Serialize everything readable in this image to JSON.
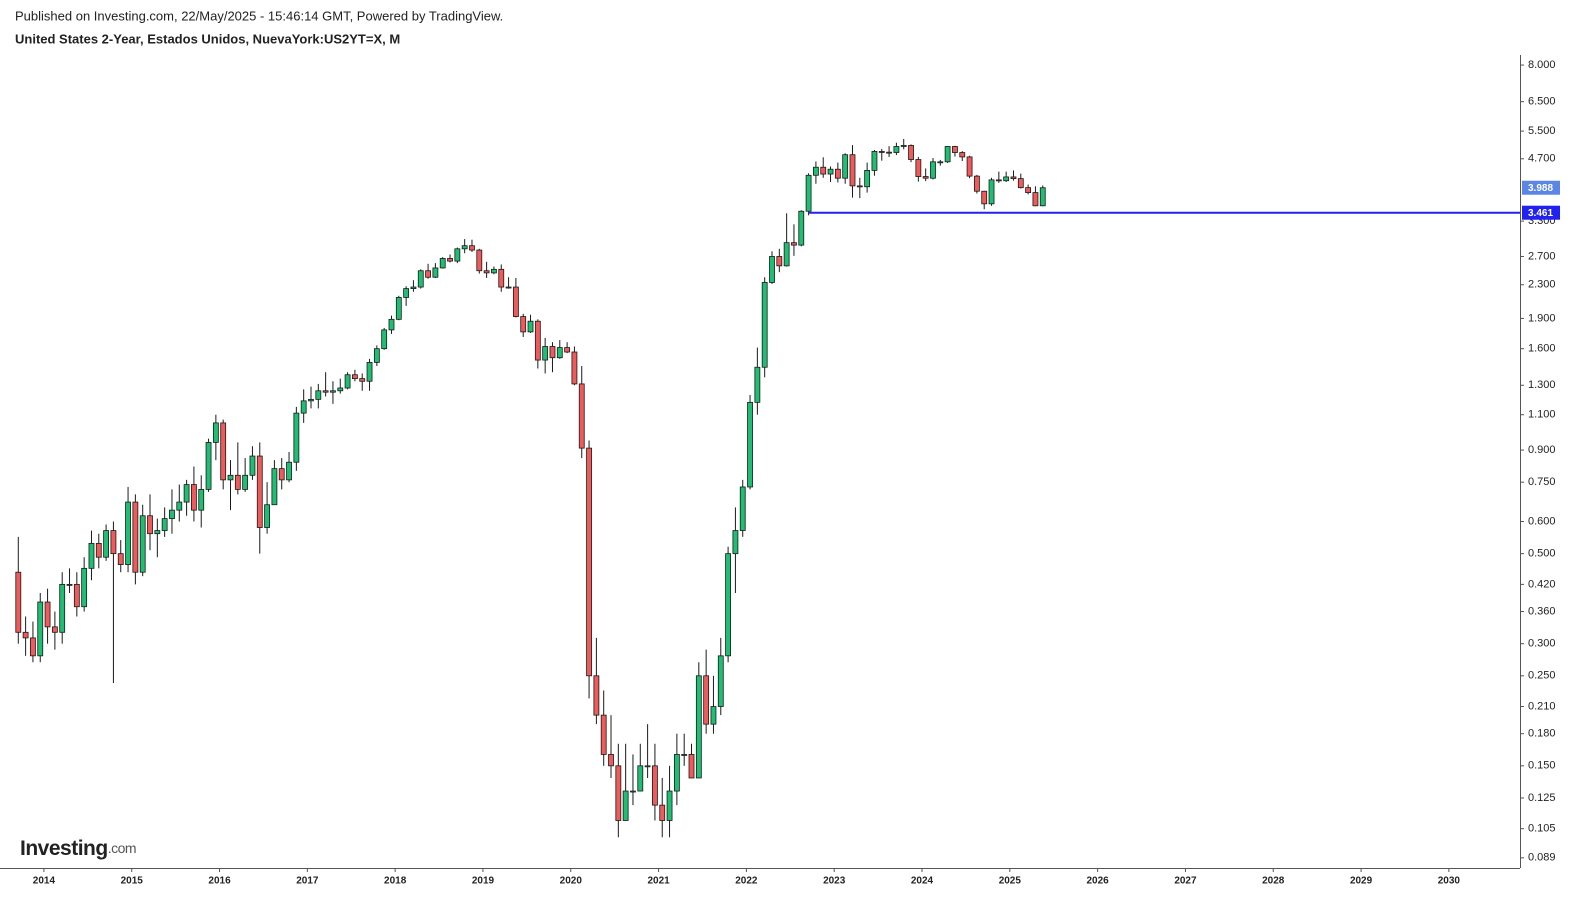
{
  "header": {
    "published": "Published on Investing.com, 22/May/2025 - 15:46:14 GMT, Powered by TradingView.",
    "symbol": "United States 2-Year, Estados Unidos, NuevaYork:US2YT=X, M"
  },
  "logo": {
    "brand": "Investing",
    "suffix": ".com"
  },
  "chart_data": {
    "type": "candlestick",
    "log_scale": true,
    "up_color": "#1fbf73",
    "down_color": "#ef5a5a",
    "outline_color": "#1a1a1a",
    "x": [
      "2013-09",
      "2013-10",
      "2013-11",
      "2013-12",
      "2014-01",
      "2014-02",
      "2014-03",
      "2014-04",
      "2014-05",
      "2014-06",
      "2014-07",
      "2014-08",
      "2014-09",
      "2014-10",
      "2014-11",
      "2014-12",
      "2015-01",
      "2015-02",
      "2015-03",
      "2015-04",
      "2015-05",
      "2015-06",
      "2015-07",
      "2015-08",
      "2015-09",
      "2015-10",
      "2015-11",
      "2015-12",
      "2016-01",
      "2016-02",
      "2016-03",
      "2016-04",
      "2016-05",
      "2016-06",
      "2016-07",
      "2016-08",
      "2016-09",
      "2016-10",
      "2016-11",
      "2016-12",
      "2017-01",
      "2017-02",
      "2017-03",
      "2017-04",
      "2017-05",
      "2017-06",
      "2017-07",
      "2017-08",
      "2017-09",
      "2017-10",
      "2017-11",
      "2017-12",
      "2018-01",
      "2018-02",
      "2018-03",
      "2018-04",
      "2018-05",
      "2018-06",
      "2018-07",
      "2018-08",
      "2018-09",
      "2018-10",
      "2018-11",
      "2018-12",
      "2019-01",
      "2019-02",
      "2019-03",
      "2019-04",
      "2019-05",
      "2019-06",
      "2019-07",
      "2019-08",
      "2019-09",
      "2019-10",
      "2019-11",
      "2019-12",
      "2020-01",
      "2020-02",
      "2020-03",
      "2020-04",
      "2020-05",
      "2020-06",
      "2020-07",
      "2020-08",
      "2020-09",
      "2020-10",
      "2020-11",
      "2020-12",
      "2021-01",
      "2021-02",
      "2021-03",
      "2021-04",
      "2021-05",
      "2021-06",
      "2021-07",
      "2021-08",
      "2021-09",
      "2021-10",
      "2021-11",
      "2021-12",
      "2022-01",
      "2022-02",
      "2022-03",
      "2022-04",
      "2022-05",
      "2022-06",
      "2022-07",
      "2022-08",
      "2022-09",
      "2022-10",
      "2022-11",
      "2022-12",
      "2023-01",
      "2023-02",
      "2023-03",
      "2023-04",
      "2023-05",
      "2023-06",
      "2023-07",
      "2023-08",
      "2023-09",
      "2023-10",
      "2023-11",
      "2023-12",
      "2024-01",
      "2024-02",
      "2024-03",
      "2024-04",
      "2024-05",
      "2024-06",
      "2024-07",
      "2024-08",
      "2024-09",
      "2024-10",
      "2024-11",
      "2024-12",
      "2025-01",
      "2025-02",
      "2025-03",
      "2025-04",
      "2025-05"
    ],
    "open": [
      0.45,
      0.32,
      0.31,
      0.28,
      0.38,
      0.33,
      0.32,
      0.42,
      0.42,
      0.37,
      0.46,
      0.53,
      0.49,
      0.57,
      0.5,
      0.47,
      0.67,
      0.45,
      0.62,
      0.56,
      0.57,
      0.61,
      0.64,
      0.67,
      0.74,
      0.64,
      0.72,
      0.94,
      1.05,
      0.76,
      0.78,
      0.72,
      0.78,
      0.87,
      0.58,
      0.66,
      0.81,
      0.76,
      0.84,
      1.11,
      1.19,
      1.2,
      1.26,
      1.25,
      1.26,
      1.28,
      1.38,
      1.35,
      1.33,
      1.48,
      1.6,
      1.78,
      1.89,
      2.14,
      2.25,
      2.27,
      2.49,
      2.4,
      2.53,
      2.67,
      2.63,
      2.82,
      2.87,
      2.8,
      2.49,
      2.46,
      2.51,
      2.27,
      2.27,
      1.92,
      1.76,
      1.87,
      1.5,
      1.62,
      1.52,
      1.61,
      1.57,
      1.31,
      0.91,
      0.25,
      0.2,
      0.16,
      0.15,
      0.11,
      0.13,
      0.13,
      0.15,
      0.15,
      0.12,
      0.11,
      0.13,
      0.16,
      0.16,
      0.14,
      0.25,
      0.19,
      0.21,
      0.28,
      0.5,
      0.57,
      0.73,
      1.18,
      1.44,
      2.33,
      2.7,
      2.56,
      2.92,
      2.88,
      3.49,
      4.28,
      4.48,
      4.31,
      4.43,
      4.21,
      4.81,
      4.03,
      4.01,
      4.4,
      4.9,
      4.88,
      4.87,
      5.04,
      5.07,
      4.68,
      4.25,
      4.21,
      4.62,
      4.62,
      5.04,
      4.87,
      4.75,
      4.26,
      3.91,
      3.64,
      4.17,
      4.15,
      4.24,
      4.2,
      3.99,
      3.88,
      3.6
    ],
    "high": [
      0.55,
      0.35,
      0.34,
      0.4,
      0.41,
      0.36,
      0.45,
      0.46,
      0.45,
      0.49,
      0.57,
      0.56,
      0.59,
      0.6,
      0.54,
      0.73,
      0.7,
      0.66,
      0.7,
      0.61,
      0.65,
      0.72,
      0.74,
      0.76,
      0.82,
      0.78,
      0.96,
      1.1,
      1.07,
      0.85,
      0.94,
      0.86,
      0.92,
      0.94,
      0.75,
      0.85,
      0.86,
      0.89,
      1.15,
      1.27,
      1.29,
      1.31,
      1.4,
      1.33,
      1.35,
      1.4,
      1.42,
      1.39,
      1.51,
      1.63,
      1.8,
      1.93,
      2.16,
      2.28,
      2.36,
      2.51,
      2.59,
      2.6,
      2.69,
      2.73,
      2.84,
      2.98,
      2.97,
      2.82,
      2.62,
      2.55,
      2.58,
      2.4,
      2.39,
      1.95,
      1.94,
      1.89,
      1.7,
      1.66,
      1.68,
      1.66,
      1.62,
      1.45,
      0.95,
      0.31,
      0.23,
      0.2,
      0.17,
      0.17,
      0.16,
      0.17,
      0.19,
      0.17,
      0.14,
      0.15,
      0.18,
      0.18,
      0.17,
      0.27,
      0.29,
      0.25,
      0.31,
      0.52,
      0.65,
      0.76,
      1.23,
      1.61,
      2.4,
      2.78,
      2.82,
      3.45,
      3.24,
      3.51,
      4.33,
      4.63,
      4.74,
      4.5,
      4.6,
      4.85,
      5.08,
      4.22,
      4.6,
      4.94,
      4.97,
      5.05,
      5.15,
      5.26,
      5.1,
      4.75,
      4.45,
      4.72,
      4.67,
      5.05,
      5.06,
      4.91,
      4.78,
      4.29,
      3.92,
      4.22,
      4.37,
      4.37,
      4.4,
      4.32,
      4.06,
      4.02,
      4.04
    ],
    "low": [
      0.3,
      0.28,
      0.27,
      0.27,
      0.3,
      0.29,
      0.3,
      0.4,
      0.35,
      0.36,
      0.43,
      0.46,
      0.48,
      0.24,
      0.45,
      0.45,
      0.42,
      0.44,
      0.51,
      0.49,
      0.55,
      0.56,
      0.6,
      0.62,
      0.6,
      0.58,
      0.71,
      0.85,
      0.72,
      0.64,
      0.7,
      0.71,
      0.76,
      0.5,
      0.56,
      0.66,
      0.72,
      0.75,
      0.8,
      1.05,
      1.14,
      1.14,
      1.22,
      1.17,
      1.24,
      1.27,
      1.33,
      1.26,
      1.26,
      1.45,
      1.59,
      1.74,
      1.88,
      2.04,
      2.21,
      2.25,
      2.38,
      2.39,
      2.52,
      2.61,
      2.6,
      2.75,
      2.77,
      2.45,
      2.39,
      2.44,
      2.21,
      2.25,
      1.91,
      1.71,
      1.75,
      1.43,
      1.39,
      1.4,
      1.51,
      1.56,
      1.3,
      0.86,
      0.22,
      0.19,
      0.15,
      0.14,
      0.1,
      0.11,
      0.12,
      0.13,
      0.14,
      0.11,
      0.1,
      0.1,
      0.12,
      0.15,
      0.14,
      0.14,
      0.18,
      0.18,
      0.2,
      0.27,
      0.4,
      0.55,
      0.72,
      1.1,
      1.36,
      2.31,
      2.47,
      2.55,
      2.71,
      2.86,
      3.41,
      4.08,
      4.22,
      4.12,
      4.11,
      4.08,
      3.77,
      3.76,
      3.88,
      4.27,
      4.65,
      4.75,
      4.8,
      4.96,
      4.61,
      4.13,
      4.14,
      4.18,
      4.52,
      4.59,
      4.76,
      4.64,
      4.21,
      3.86,
      3.53,
      3.6,
      4.1,
      4.12,
      4.15,
      3.97,
      3.84,
      3.59,
      3.59
    ],
    "close": [
      0.32,
      0.31,
      0.28,
      0.38,
      0.33,
      0.32,
      0.42,
      0.42,
      0.37,
      0.46,
      0.53,
      0.49,
      0.57,
      0.5,
      0.47,
      0.67,
      0.45,
      0.62,
      0.56,
      0.57,
      0.61,
      0.64,
      0.67,
      0.74,
      0.64,
      0.72,
      0.94,
      1.05,
      0.76,
      0.78,
      0.72,
      0.78,
      0.87,
      0.58,
      0.66,
      0.81,
      0.76,
      0.84,
      1.11,
      1.19,
      1.2,
      1.26,
      1.25,
      1.26,
      1.28,
      1.38,
      1.35,
      1.33,
      1.48,
      1.6,
      1.78,
      1.89,
      2.14,
      2.25,
      2.27,
      2.49,
      2.4,
      2.53,
      2.67,
      2.63,
      2.82,
      2.87,
      2.8,
      2.49,
      2.46,
      2.51,
      2.27,
      2.27,
      1.92,
      1.76,
      1.87,
      1.5,
      1.62,
      1.52,
      1.61,
      1.57,
      1.31,
      0.91,
      0.25,
      0.2,
      0.16,
      0.15,
      0.11,
      0.13,
      0.13,
      0.15,
      0.15,
      0.12,
      0.11,
      0.13,
      0.16,
      0.16,
      0.14,
      0.25,
      0.19,
      0.21,
      0.28,
      0.5,
      0.57,
      0.73,
      1.18,
      1.44,
      2.33,
      2.7,
      2.56,
      2.92,
      2.88,
      3.49,
      4.28,
      4.48,
      4.31,
      4.43,
      4.21,
      4.81,
      4.03,
      4.01,
      4.4,
      4.9,
      4.88,
      4.87,
      5.04,
      5.07,
      4.68,
      4.25,
      4.21,
      4.62,
      4.62,
      5.04,
      4.87,
      4.75,
      4.26,
      3.91,
      3.64,
      4.17,
      4.15,
      4.24,
      4.2,
      3.99,
      3.88,
      3.6,
      3.988
    ],
    "last_color": "#5b86e5",
    "hline": {
      "value": 3.461,
      "start": "2022-09",
      "color": "#2121f0"
    },
    "xlim": [
      2013.5,
      2030.81
    ],
    "xticks": [
      2014,
      2015,
      2016,
      2017,
      2018,
      2019,
      2020,
      2021,
      2022,
      2023,
      2024,
      2025,
      2026,
      2027,
      2028,
      2029,
      2030
    ],
    "ylim": [
      0.084,
      8.47
    ],
    "yticks": [
      {
        "value": 8,
        "label": "8.000"
      },
      {
        "value": 6.5,
        "label": "6.500"
      },
      {
        "value": 5.5,
        "label": "5.500"
      },
      {
        "value": 4.7,
        "label": "4.700"
      },
      {
        "value": 3.3,
        "label": "3.300"
      },
      {
        "value": 2.7,
        "label": "2.700"
      },
      {
        "value": 2.3,
        "label": "2.300"
      },
      {
        "value": 1.9,
        "label": "1.900"
      },
      {
        "value": 1.6,
        "label": "1.600"
      },
      {
        "value": 1.3,
        "label": "1.300"
      },
      {
        "value": 1.1,
        "label": "1.100"
      },
      {
        "value": 0.9,
        "label": "0.900"
      },
      {
        "value": 0.75,
        "label": "0.750"
      },
      {
        "value": 0.6,
        "label": "0.600"
      },
      {
        "value": 0.5,
        "label": "0.500"
      },
      {
        "value": 0.42,
        "label": "0.420"
      },
      {
        "value": 0.36,
        "label": "0.360"
      },
      {
        "value": 0.3,
        "label": "0.300"
      },
      {
        "value": 0.25,
        "label": "0.250"
      },
      {
        "value": 0.21,
        "label": "0.210"
      },
      {
        "value": 0.18,
        "label": "0.180"
      },
      {
        "value": 0.15,
        "label": "0.150"
      },
      {
        "value": 0.125,
        "label": "0.125"
      },
      {
        "value": 0.105,
        "label": "0.105"
      },
      {
        "value": 0.089,
        "label": "0.089"
      }
    ]
  }
}
